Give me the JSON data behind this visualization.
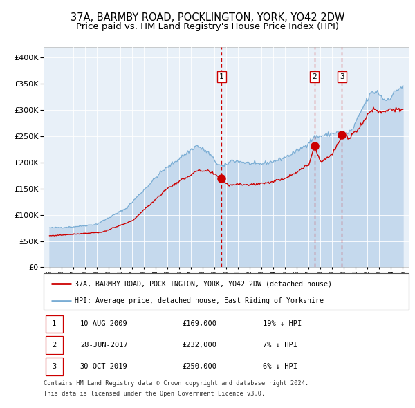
{
  "title1": "37A, BARMBY ROAD, POCKLINGTON, YORK, YO42 2DW",
  "title2": "Price paid vs. HM Land Registry's House Price Index (HPI)",
  "legend_red": "37A, BARMBY ROAD, POCKLINGTON, YORK, YO42 2DW (detached house)",
  "legend_blue": "HPI: Average price, detached house, East Riding of Yorkshire",
  "sales": [
    {
      "num": 1,
      "date": "10-AUG-2009",
      "price": 169000,
      "pct": "19%",
      "dir": "↓"
    },
    {
      "num": 2,
      "date": "28-JUN-2017",
      "price": 232000,
      "pct": "7%",
      "dir": "↓"
    },
    {
      "num": 3,
      "date": "30-OCT-2019",
      "price": 250000,
      "pct": "6%",
      "dir": "↓"
    }
  ],
  "sale_dates_decimal": [
    2009.608,
    2017.493,
    2019.831
  ],
  "sale_prices": [
    169000,
    232000,
    250000
  ],
  "footnote1": "Contains HM Land Registry data © Crown copyright and database right 2024.",
  "footnote2": "This data is licensed under the Open Government Licence v3.0.",
  "ylim": [
    0,
    420000
  ],
  "xlim_start": 1994.5,
  "xlim_end": 2025.5,
  "bg_color": "#e8f0f8",
  "red_color": "#cc0000",
  "blue_color": "#7aadd4",
  "blue_fill": "#c5d9ed",
  "grid_color": "#ffffff",
  "vline_color": "#cc0000",
  "title_fontsize": 10.5,
  "subtitle_fontsize": 9.5,
  "hpi_milestones_x": [
    1995.0,
    1997.0,
    1999.0,
    2001.5,
    2004.5,
    2007.5,
    2008.5,
    2009.3,
    2009.8,
    2010.5,
    2011.5,
    2012.5,
    2013.5,
    2014.5,
    2015.5,
    2016.5,
    2017.5,
    2018.5,
    2019.5,
    2020.3,
    2020.8,
    2021.5,
    2022.3,
    2022.8,
    2023.5,
    2024.0,
    2024.5,
    2025.0
  ],
  "hpi_milestones_y": [
    75000,
    77000,
    82000,
    112000,
    182000,
    232000,
    218000,
    196000,
    192000,
    204000,
    200000,
    196000,
    199000,
    205000,
    215000,
    228000,
    248000,
    252000,
    258000,
    254000,
    265000,
    300000,
    332000,
    335000,
    318000,
    325000,
    338000,
    345000
  ],
  "red_milestones_x": [
    1995.0,
    1997.0,
    1999.5,
    2002.0,
    2005.0,
    2007.5,
    2008.5,
    2009.608,
    2010.2,
    2011.0,
    2012.0,
    2013.0,
    2014.0,
    2015.0,
    2016.0,
    2017.0,
    2017.493,
    2018.0,
    2018.5,
    2019.0,
    2019.831,
    2020.5,
    2021.0,
    2021.5,
    2022.0,
    2022.5,
    2023.0,
    2023.5,
    2024.0,
    2024.5,
    2025.0
  ],
  "red_milestones_y": [
    60000,
    63000,
    67000,
    88000,
    150000,
    183000,
    183000,
    169000,
    156000,
    159000,
    157000,
    160000,
    163000,
    170000,
    182000,
    195000,
    232000,
    202000,
    208000,
    215000,
    250000,
    247000,
    260000,
    272000,
    290000,
    303000,
    296000,
    298000,
    302000,
    300000,
    297000
  ]
}
